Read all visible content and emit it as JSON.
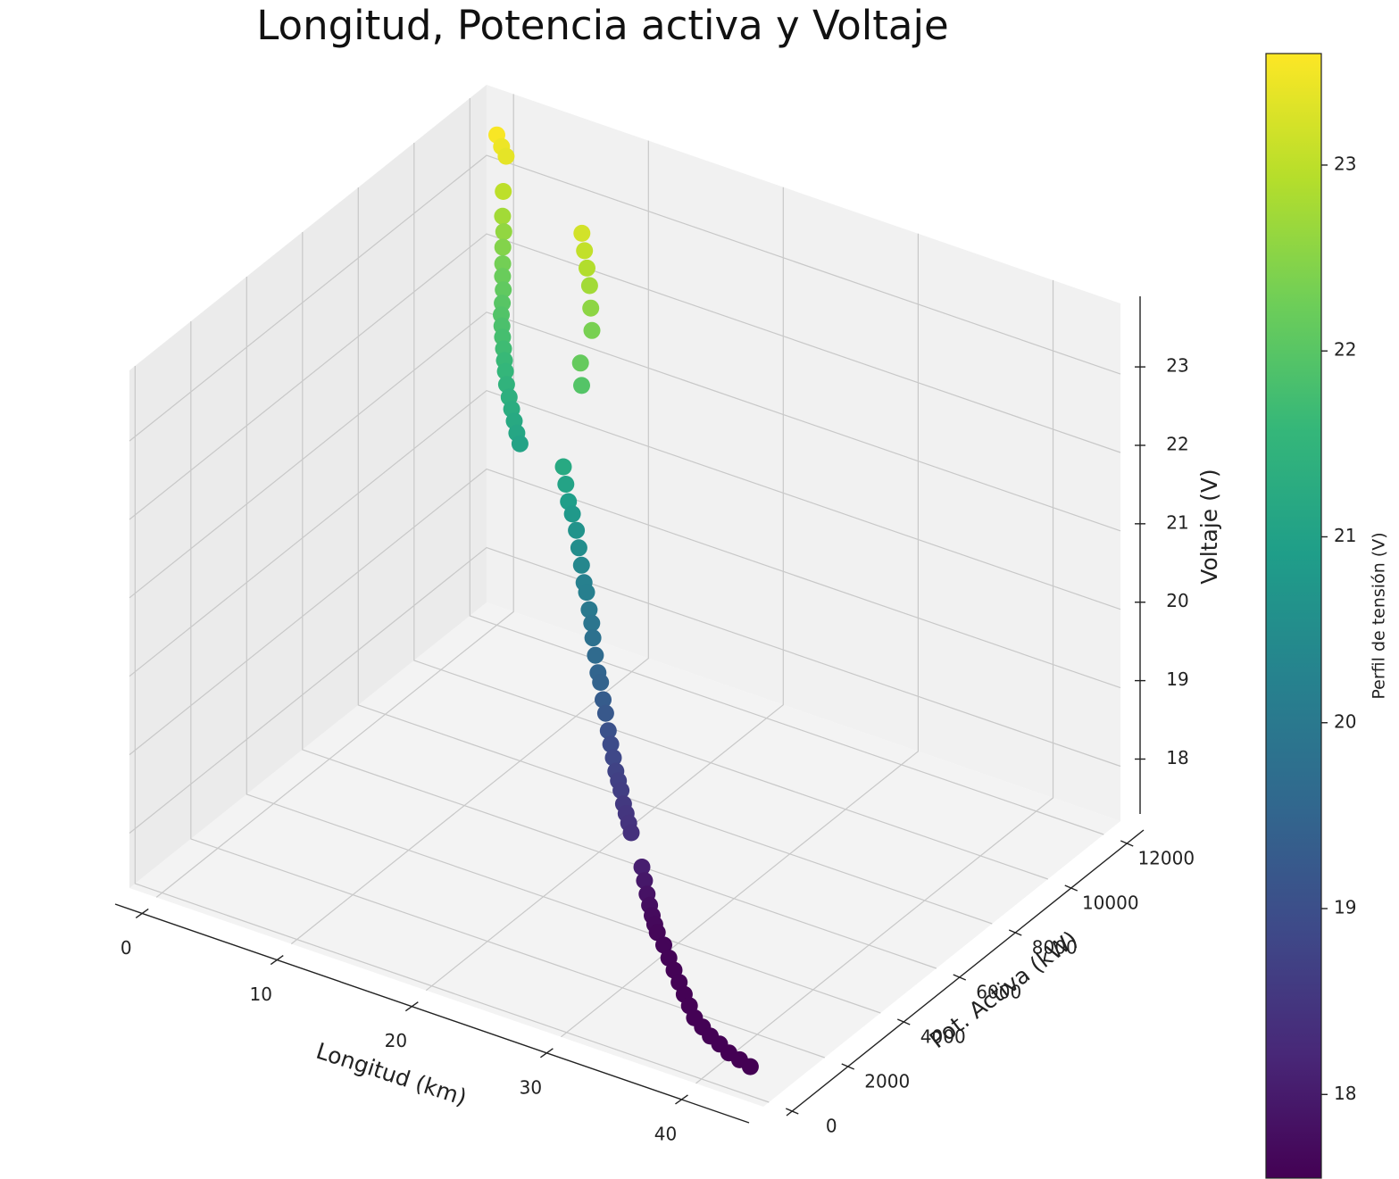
{
  "chart_data": {
    "type": "scatter",
    "title": "Longitud, Potencia activa y Voltaje",
    "xlabel": "Longitud (km)",
    "ylabel": "Pot. Activa (kW)",
    "zlabel": "Voltaje (V)",
    "xlim": [
      -2,
      45
    ],
    "ylim": [
      -200,
      12600
    ],
    "zlim": [
      17.3,
      23.9
    ],
    "x_ticks": [
      "0",
      "10",
      "20",
      "30",
      "40"
    ],
    "y_ticks": [
      "0",
      "2000",
      "4000",
      "6000",
      "8000",
      "10000",
      "12000"
    ],
    "z_ticks": [
      "18",
      "19",
      "20",
      "21",
      "22",
      "23"
    ],
    "grid": true,
    "colormap": "viridis",
    "colorbar": {
      "label": "Perfil de tensión (V)",
      "ticks": [
        "18",
        "19",
        "20",
        "21",
        "22",
        "23"
      ],
      "range": [
        17.55,
        23.6
      ]
    },
    "points": [
      [
        0.0,
        12000,
        23.55
      ],
      [
        0.5,
        11930,
        23.45
      ],
      [
        1.0,
        11850,
        23.38
      ],
      [
        1.2,
        11650,
        23.0
      ],
      [
        1.5,
        11480,
        22.75
      ],
      [
        1.8,
        11380,
        22.6
      ],
      [
        2.0,
        11250,
        22.45
      ],
      [
        2.3,
        11100,
        22.3
      ],
      [
        2.6,
        10950,
        22.2
      ],
      [
        3.0,
        10780,
        22.1
      ],
      [
        3.3,
        10600,
        22.0
      ],
      [
        3.6,
        10420,
        21.92
      ],
      [
        4.0,
        10250,
        21.85
      ],
      [
        4.4,
        10080,
        21.78
      ],
      [
        4.8,
        9920,
        21.7
      ],
      [
        5.2,
        9760,
        21.62
      ],
      [
        5.6,
        9600,
        21.55
      ],
      [
        6.0,
        9450,
        21.45
      ],
      [
        6.5,
        9300,
        21.36
      ],
      [
        7.0,
        9150,
        21.28
      ],
      [
        7.5,
        9000,
        21.2
      ],
      [
        8.0,
        8850,
        21.12
      ],
      [
        8.5,
        8720,
        21.05
      ],
      [
        9.0,
        10700,
        23.2
      ],
      [
        9.5,
        10550,
        23.05
      ],
      [
        10.0,
        10400,
        22.9
      ],
      [
        10.5,
        10250,
        22.75
      ],
      [
        11.0,
        10050,
        22.55
      ],
      [
        11.5,
        9850,
        22.35
      ],
      [
        12.0,
        9200,
        22.15
      ],
      [
        12.5,
        9000,
        21.95
      ],
      [
        13.0,
        8100,
        21.2
      ],
      [
        13.5,
        7950,
        21.05
      ],
      [
        14.0,
        7800,
        20.9
      ],
      [
        14.5,
        7700,
        20.8
      ],
      [
        15.0,
        7600,
        20.65
      ],
      [
        15.5,
        7450,
        20.5
      ],
      [
        16.0,
        7300,
        20.35
      ],
      [
        16.5,
        7150,
        20.2
      ],
      [
        17.0,
        7000,
        20.15
      ],
      [
        17.5,
        6850,
        20.0
      ],
      [
        18.0,
        6700,
        19.9
      ],
      [
        18.5,
        6500,
        19.8
      ],
      [
        19.0,
        6350,
        19.65
      ],
      [
        19.5,
        6200,
        19.5
      ],
      [
        20.0,
        6050,
        19.45
      ],
      [
        20.5,
        5900,
        19.3
      ],
      [
        21.0,
        5750,
        19.2
      ],
      [
        21.5,
        5600,
        19.05
      ],
      [
        22.0,
        5450,
        18.95
      ],
      [
        22.5,
        5300,
        18.85
      ],
      [
        23.0,
        5150,
        18.75
      ],
      [
        23.5,
        5000,
        18.7
      ],
      [
        24.0,
        4850,
        18.65
      ],
      [
        24.5,
        4700,
        18.55
      ],
      [
        25.0,
        4550,
        18.5
      ],
      [
        25.5,
        4400,
        18.45
      ],
      [
        26.0,
        4250,
        18.4
      ],
      [
        27.0,
        4150,
        18.05
      ],
      [
        27.5,
        4000,
        17.95
      ],
      [
        28.0,
        3850,
        17.85
      ],
      [
        28.5,
        3700,
        17.78
      ],
      [
        29.0,
        3550,
        17.72
      ],
      [
        29.5,
        3400,
        17.68
      ],
      [
        30.0,
        3250,
        17.65
      ],
      [
        31.0,
        3000,
        17.62
      ],
      [
        32.0,
        2700,
        17.6
      ],
      [
        33.0,
        2400,
        17.59
      ],
      [
        34.0,
        2100,
        17.58
      ],
      [
        35.0,
        1800,
        17.57
      ],
      [
        36.0,
        1500,
        17.57
      ],
      [
        37.0,
        1200,
        17.56
      ],
      [
        38.0,
        1000,
        17.56
      ],
      [
        39.0,
        800,
        17.56
      ],
      [
        40.0,
        650,
        17.56
      ],
      [
        41.0,
        500,
        17.55
      ],
      [
        42.0,
        400,
        17.55
      ],
      [
        43.0,
        300,
        17.55
      ]
    ]
  }
}
